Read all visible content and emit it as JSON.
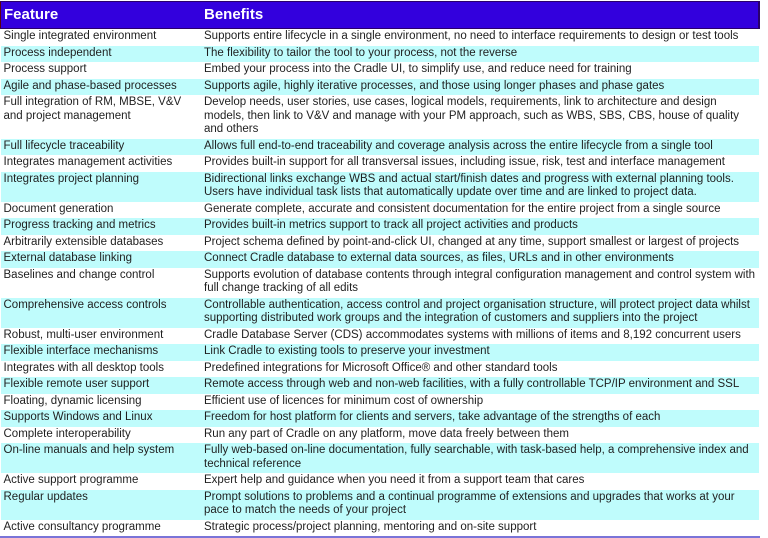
{
  "table": {
    "header": {
      "feature_label": "Feature",
      "benefits_label": "Benefits"
    },
    "rows": [
      {
        "feature": "Single integrated environment",
        "benefit": "Supports entire lifecycle in a single environment, no need to interface requirements to design or test tools"
      },
      {
        "feature": "Process independent",
        "benefit": "The flexibility to tailor the tool to your process, not the reverse"
      },
      {
        "feature": "Process support",
        "benefit": "Embed your process into the Cradle UI, to simplify use, and reduce need for training"
      },
      {
        "feature": "Agile and phase-based processes",
        "benefit": "Supports agile, highly iterative processes, and those using longer phases and phase gates"
      },
      {
        "feature": "Full integration of RM, MBSE, V&V and project management",
        "benefit": "Develop needs, user stories, use cases, logical models, requirements, link to architecture and design models, then link to V&V and manage with your PM approach, such as WBS, SBS, CBS, house of quality and others"
      },
      {
        "feature": "Full lifecycle traceability",
        "benefit": "Allows full end-to-end traceability and coverage analysis across the entire lifecycle from a single tool"
      },
      {
        "feature": "Integrates management activities",
        "benefit": "Provides built-in support for all transversal issues, including issue, risk, test and interface management"
      },
      {
        "feature": "Integrates project planning",
        "benefit": "Bidirectional links exchange WBS and actual start/finish dates and progress with external planning tools. Users have individual task lists that automatically update over time and are linked to project data."
      },
      {
        "feature": "Document generation",
        "benefit": "Generate complete, accurate and consistent documentation for the entire project from a single source"
      },
      {
        "feature": "Progress tracking and metrics",
        "benefit": "Provides built-in metrics support to track all project activities and products"
      },
      {
        "feature": "Arbitrarily extensible databases",
        "benefit": "Project schema defined by point-and-click UI, changed at any time, support smallest or largest of projects"
      },
      {
        "feature": "External database linking",
        "benefit": "Connect Cradle database to external data sources, as files, URLs and in other environments"
      },
      {
        "feature": "Baselines and change control",
        "benefit": "Supports evolution of database contents through integral configuration management and control system with full change tracking of all edits"
      },
      {
        "feature": "Comprehensive access controls",
        "benefit": "Controllable authentication, access control and project organisation structure, will protect project data whilst supporting distributed work groups and the integration of customers and suppliers into the project"
      },
      {
        "feature": "Robust, multi-user environment",
        "benefit": "Cradle Database Server (CDS) accommodates systems with millions of items and 8,192 concurrent users"
      },
      {
        "feature": "Flexible interface mechanisms",
        "benefit": "Link Cradle to existing tools to preserve your investment"
      },
      {
        "feature": "Integrates with all desktop tools",
        "benefit": "Predefined integrations for Microsoft Office® and other standard tools"
      },
      {
        "feature": "Flexible remote user support",
        "benefit": "Remote access through web and non-web facilities, with a fully controllable TCP/IP environment and SSL"
      },
      {
        "feature": "Floating, dynamic licensing",
        "benefit": "Efficient use of licences for minimum cost of ownership"
      },
      {
        "feature": "Supports Windows and Linux",
        "benefit": "Freedom for host platform for clients and servers, take advantage of the strengths of each"
      },
      {
        "feature": "Complete interoperability",
        "benefit": "Run any part of Cradle on any platform, move data freely between them"
      },
      {
        "feature": "On-line manuals and help system",
        "benefit": "Fully web-based on-line documentation, fully searchable, with task-based help, a comprehensive index and technical reference"
      },
      {
        "feature": "Active support programme",
        "benefit": "Expert help and guidance when you need it from a support team that cares"
      },
      {
        "feature": "Regular updates",
        "benefit": "Prompt solutions to problems and a continual programme of extensions and upgrades that works at your pace to match the needs of your project"
      },
      {
        "feature": "Active consultancy programme",
        "benefit": "Strategic process/project planning, mentoring and on-site support"
      }
    ],
    "colors": {
      "header_bg": "#3300dd",
      "header_text": "#ffffff",
      "row_bg": "#ffffff",
      "row_alt_bg": "#bffcfc",
      "body_text": "#1f1f1f",
      "bottom_rule": "#7a74d8"
    }
  }
}
